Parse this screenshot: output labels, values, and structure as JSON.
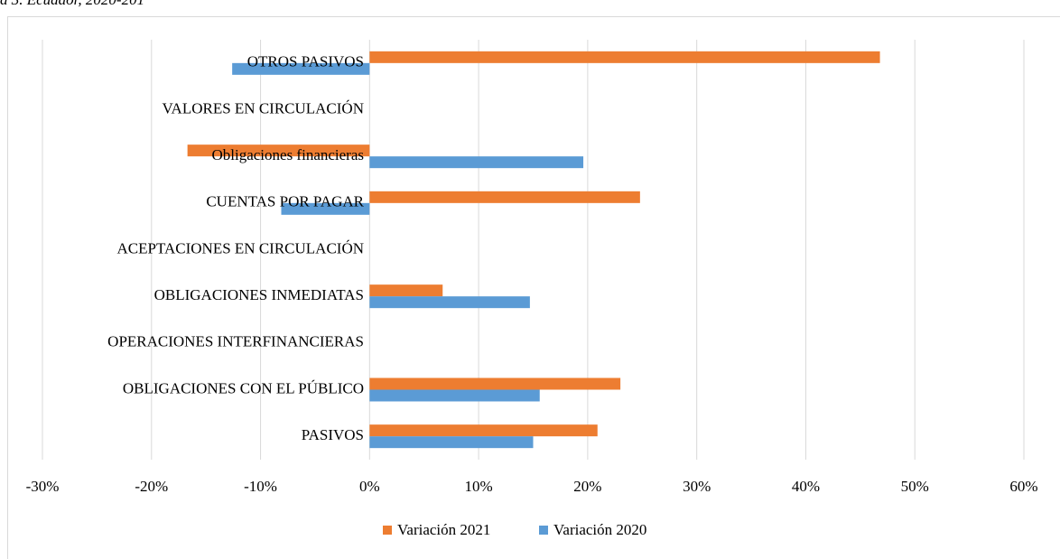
{
  "chart_data": {
    "type": "barh",
    "caption": "a 3. Ecuador, 2020-201",
    "categories": [
      "OTROS PASIVOS",
      "VALORES EN CIRCULACIÓN",
      "Obligaciones financieras",
      "CUENTAS POR PAGAR",
      "ACEPTACIONES EN CIRCULACIÓN",
      "OBLIGACIONES INMEDIATAS",
      "OPERACIONES INTERFINANCIERAS",
      "OBLIGACIONES CON EL PÚBLICO",
      "PASIVOS"
    ],
    "series": [
      {
        "name": "Variación 2021",
        "color": "#ED7D31",
        "values": [
          46.8,
          null,
          -16.7,
          24.8,
          null,
          6.7,
          null,
          23.0,
          20.9
        ]
      },
      {
        "name": "Variación 2020",
        "color": "#5B9BD5",
        "values": [
          -12.6,
          null,
          19.6,
          -8.1,
          null,
          14.7,
          null,
          15.6,
          15.0
        ]
      }
    ],
    "xlim": [
      -30,
      60
    ],
    "xticks": [
      {
        "value": -30,
        "label": "-30%"
      },
      {
        "value": -20,
        "label": "-20%"
      },
      {
        "value": -10,
        "label": "-10%"
      },
      {
        "value": 0,
        "label": "0%"
      },
      {
        "value": 10,
        "label": "10%"
      },
      {
        "value": 20,
        "label": "20%"
      },
      {
        "value": 30,
        "label": "30%"
      },
      {
        "value": 40,
        "label": "40%"
      },
      {
        "value": 50,
        "label": "50%"
      },
      {
        "value": 60,
        "label": "60%"
      }
    ],
    "grid": true,
    "legend": "bottom"
  }
}
